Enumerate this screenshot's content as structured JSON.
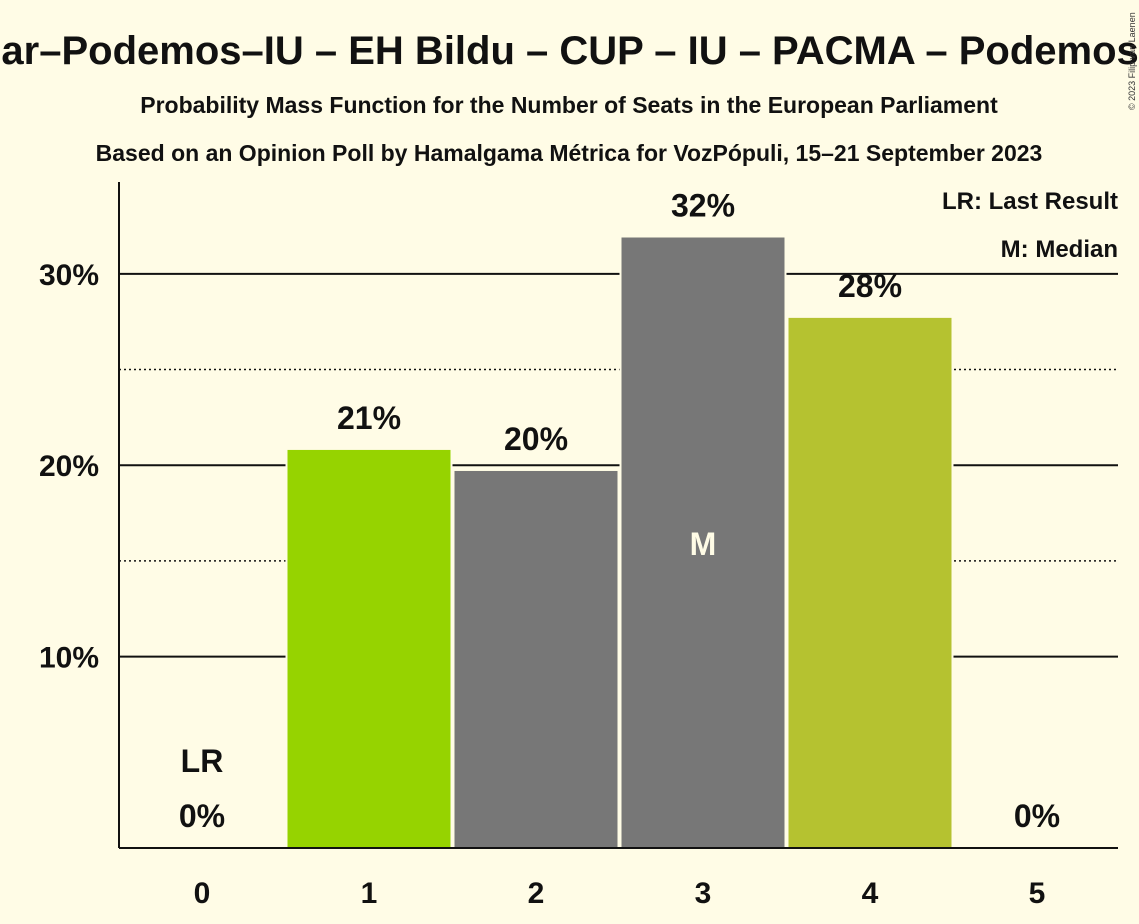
{
  "colors": {
    "background": "#FFFCE6",
    "gray": "#777777",
    "green": "#96D300",
    "olive": "#B5C230",
    "text": "#111111"
  },
  "chart_data": {
    "type": "bar",
    "title": "Sumar–Podemos–IU – EH Bildu – CUP – IU – PACMA – Podemos – …",
    "subtitle1": "Probability Mass Function for the Number of Seats in the European Parliament",
    "subtitle2": "Based on an Opinion Poll by Hamalgama Métrica for VozPópuli, 15–21 September 2023",
    "legend": [
      "LR: Last Result",
      "M: Median"
    ],
    "copyright": "© 2023 Filip van Laenen",
    "categories": [
      "0",
      "1",
      "2",
      "3",
      "4",
      "5"
    ],
    "values": [
      0,
      20.8,
      19.7,
      31.9,
      27.7,
      0
    ],
    "value_labels": [
      "0%",
      "21%",
      "20%",
      "32%",
      "28%",
      "0%"
    ],
    "bar_colors": [
      "#96D300",
      "#96D300",
      "#777777",
      "#777777",
      "#B5C230",
      "#B5C230"
    ],
    "yticks": [
      10,
      20,
      30
    ],
    "ytick_labels": [
      "10%",
      "20%",
      "30%"
    ],
    "minor_gridlines": [
      5,
      15,
      25
    ],
    "ylim": [
      0,
      34.8
    ],
    "last_result_index": 0,
    "last_result_label": "LR",
    "median_index": 3,
    "median_label": "M"
  }
}
